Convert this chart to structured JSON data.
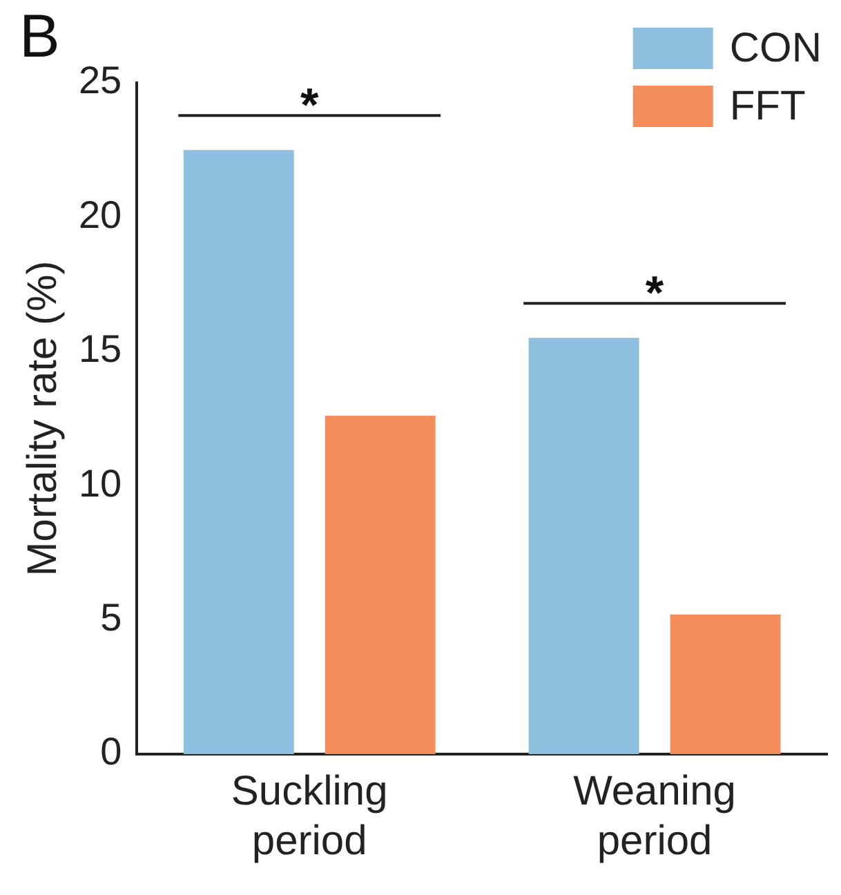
{
  "chart_data": {
    "type": "bar",
    "title": "B",
    "ylabel": "Mortality rate (%)",
    "categories": [
      "Suckling period",
      "Weaning period"
    ],
    "series": [
      {
        "name": "CON",
        "color": "#8fbfdf",
        "values": [
          22.5,
          15.5
        ]
      },
      {
        "name": "FFT",
        "color": "#f58d5b",
        "values": [
          12.6,
          5.2
        ]
      }
    ],
    "ylim": [
      0,
      25
    ],
    "yticks": [
      0,
      5,
      10,
      15,
      20,
      25
    ],
    "grid": false,
    "legend": "top right",
    "annotations": [
      "*",
      "*"
    ]
  }
}
